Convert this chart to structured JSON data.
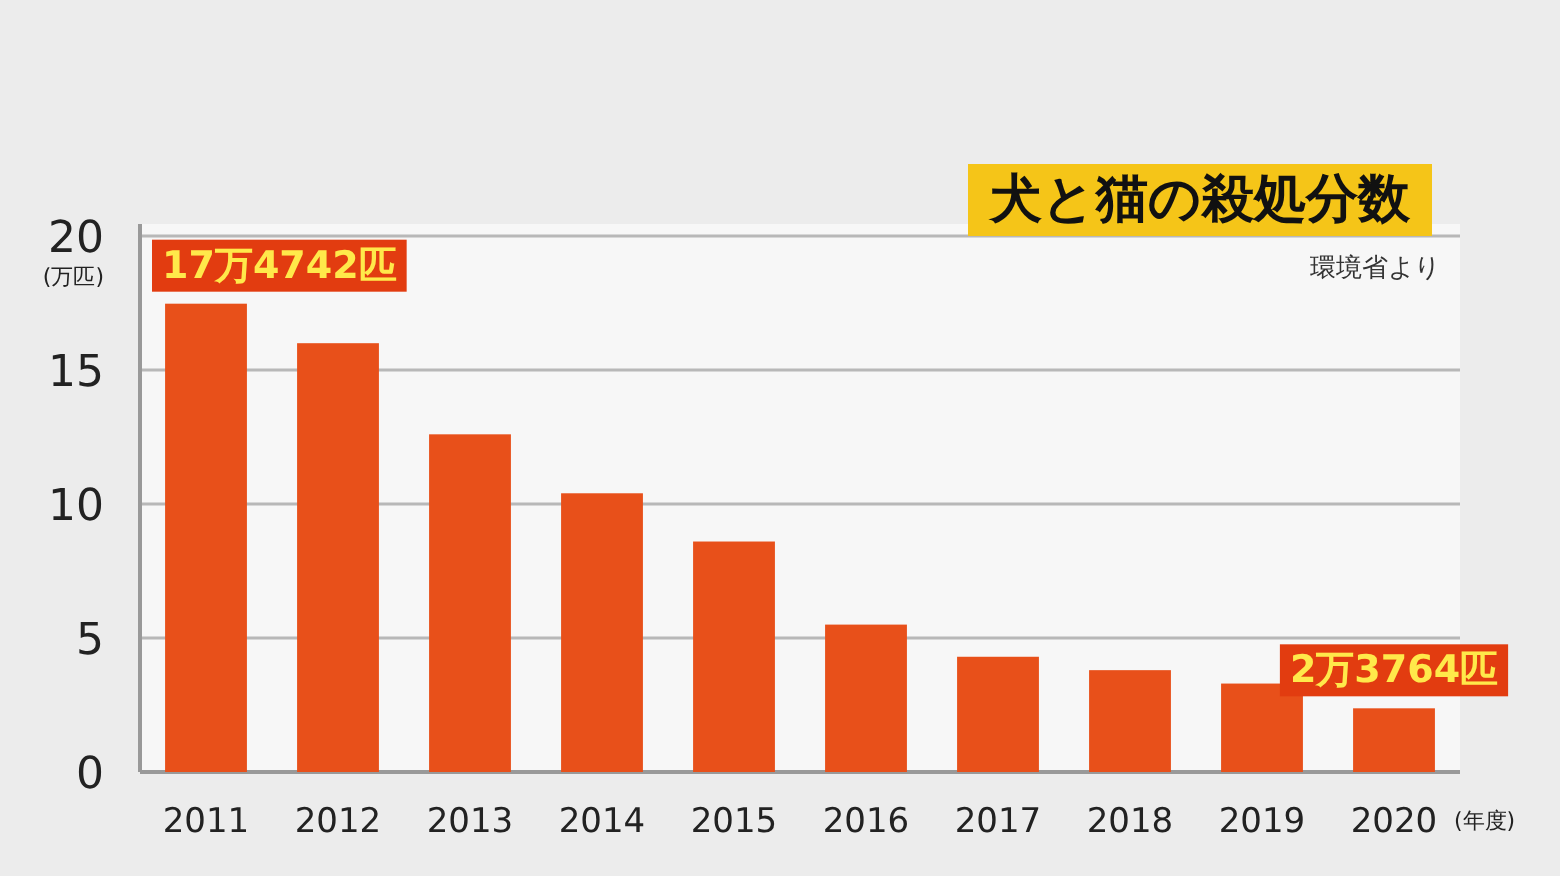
{
  "chart_data": {
    "type": "bar",
    "title": "犬と猫の殺処分数",
    "annotations": [
      "環境省より"
    ],
    "xlabel": "(年度)",
    "ylabel": "(万匹)",
    "categories": [
      "2011",
      "2012",
      "2013",
      "2014",
      "2015",
      "2016",
      "2017",
      "2018",
      "2019",
      "2020"
    ],
    "values": [
      17.4742,
      16.0,
      12.6,
      10.4,
      8.6,
      5.5,
      4.3,
      3.8,
      3.3,
      2.3764
    ],
    "value_labels": [
      "17万4742匹",
      null,
      null,
      null,
      null,
      null,
      null,
      null,
      null,
      "2万3764匹"
    ],
    "color": "#e8501a",
    "ylim": [
      0,
      20
    ],
    "yticks": [
      0,
      5,
      10,
      15,
      20
    ],
    "grid": "y"
  }
}
